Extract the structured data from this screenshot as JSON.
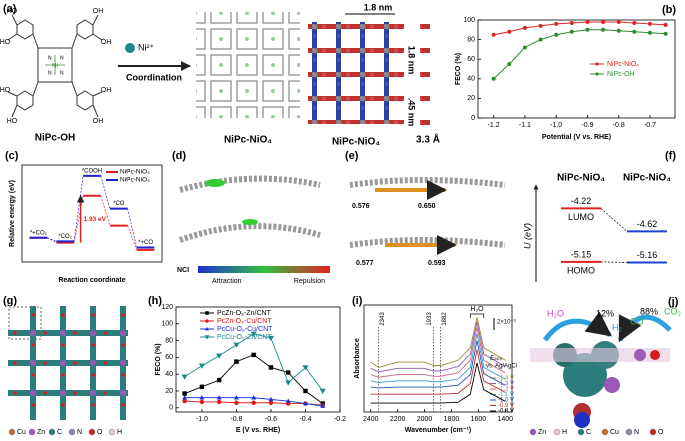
{
  "a": {
    "label": "(a)",
    "ligand": "NiPc-OH",
    "ion": "Ni²⁺",
    "reaction": "Coordination",
    "framework": "NiPc-NiO₄",
    "crystal": "NiPc-NiO₄",
    "pore_width": "1.8 nm",
    "pore_height": "1.8 nm",
    "ni_spacing": ".45 nm",
    "interlayer": "3.3 Å",
    "atoms": {
      "oh": "OH",
      "ho": "HO",
      "n": "N",
      "ni": "Ni"
    }
  },
  "b": {
    "label": "(b)",
    "chart": {
      "type": "line",
      "xlabel": "Potential (V vs. RHE)",
      "ylabel": "FECO (%)",
      "xlim": [
        -1.25,
        -0.62
      ],
      "xticks": [
        -1.2,
        -1.1,
        {
          "value": -1,
          "label": "-1.0"
        },
        -0.9,
        -0.8,
        -0.7
      ],
      "ylim": [
        0,
        100
      ],
      "yticks": [
        0,
        20,
        40,
        60,
        80,
        100
      ],
      "x": [
        -1.2,
        -1.15,
        -1.1,
        -1.05,
        -1,
        -0.95,
        -0.9,
        -0.85,
        -0.8,
        -0.75,
        -0.7,
        -0.65
      ],
      "series": [
        {
          "name": "NiPc-NiO₄",
          "color": "#d62728",
          "marker": "circle",
          "values": [
            85,
            88,
            92,
            94,
            96,
            97,
            98,
            98,
            98,
            97,
            96,
            95
          ]
        },
        {
          "name": "NiPc-OH",
          "color": "#2e8b2e",
          "marker": "circle",
          "values": [
            40,
            55,
            72,
            80,
            85,
            88,
            90,
            90,
            89,
            88,
            87,
            86
          ]
        }
      ]
    }
  },
  "c": {
    "label": "(c)",
    "chart": {
      "type": "energy",
      "xlabel": "Reaction coordinate",
      "ylabel": "Relative energy (eV)",
      "categories": [
        "*+CO₂",
        "*CO₂",
        "*COOH",
        "*CO",
        "*+CO"
      ],
      "ylim": [
        -1,
        3
      ],
      "annotation": "1.93 eV",
      "series": [
        {
          "name": "NiPc-NiO₄",
          "color": "#e02020",
          "values": [
            0,
            -0.2,
            1.73,
            0.5,
            -0.5
          ]
        },
        {
          "name": "NiPc-NiO₄",
          "color": "#2020d0",
          "values": [
            0,
            -0.15,
            2.55,
            1.2,
            -0.4
          ]
        }
      ]
    }
  },
  "d": {
    "label": "(d)",
    "scale_title": "NCI",
    "low": "Attraction",
    "high": "Repulsion"
  },
  "e": {
    "label": "(e)",
    "distances": [
      "0.576",
      "0.650",
      "0.577",
      "0.593"
    ]
  },
  "f": {
    "label": "(f)",
    "chart": {
      "type": "levels",
      "ylabel": "U (eV)",
      "ylim": [
        -5.5,
        -3.9
      ],
      "categories": [
        "LUMO",
        "HOMO"
      ],
      "series": [
        {
          "name": "NiPc-NiO₄",
          "color": "#e02020",
          "values": [
            -4.22,
            -5.15
          ]
        },
        {
          "name": "NiPc-NiO₄",
          "color": "#2040d0",
          "values": [
            -4.62,
            -5.16
          ]
        }
      ]
    }
  },
  "g": {
    "label": "(g)",
    "legend": [
      {
        "name": "Cu",
        "color": "#b87333"
      },
      {
        "name": "Zn",
        "color": "#9b59b6"
      },
      {
        "name": "C",
        "color": "#2a7d7b"
      },
      {
        "name": "N",
        "color": "#8a8aa8"
      },
      {
        "name": "O",
        "color": "#d02020"
      },
      {
        "name": "H",
        "color": "#e8c8c8"
      }
    ]
  },
  "h": {
    "label": "(h)",
    "chart": {
      "type": "line",
      "xlabel": "E (V vs. RHE)",
      "ylabel": "FECO (%)",
      "xlim": [
        -1.15,
        -0.2
      ],
      "xticks": [
        {
          "value": -1,
          "label": "-1.0"
        },
        -0.8,
        -0.6,
        -0.4,
        -0.2
      ],
      "ylim": [
        -5,
        120
      ],
      "yticks": [
        0,
        20,
        40,
        60,
        80,
        100,
        120
      ],
      "x": [
        -1.1,
        -1,
        -0.9,
        -0.8,
        -0.7,
        -0.6,
        -0.5,
        -0.4,
        -0.3
      ],
      "series": [
        {
          "name": "PcZn-O₈-Zn/CNT",
          "color": "#000000",
          "marker": "square",
          "values": [
            17,
            25,
            33,
            55,
            63,
            48,
            42,
            20,
            5
          ]
        },
        {
          "name": "PcZn-O₈-Cu/CNT",
          "color": "#e01818",
          "marker": "circle",
          "values": [
            8,
            7,
            7,
            6,
            6,
            6,
            5,
            5,
            3
          ]
        },
        {
          "name": "PcCu-O₈-Cu/CNT",
          "color": "#1a2ee0",
          "marker": "triangle-up",
          "values": [
            12,
            12,
            12,
            12,
            12,
            10,
            8,
            5,
            2
          ]
        },
        {
          "name": "PcCu-O₈-Zn/CNT",
          "color": "#1d8a8a",
          "marker": "triangle-down",
          "values": [
            37,
            50,
            62,
            75,
            88,
            83,
            30,
            48,
            20
          ]
        }
      ]
    }
  },
  "i": {
    "label": "(i)",
    "peak": "H₂O",
    "scale": "2×10⁻³",
    "potential_title": "Eₐₚₚ",
    "reference": "vs. Ag/AgCl",
    "chart": {
      "type": "line",
      "xlabel": "Wavenumber (cm⁻¹)",
      "ylabel": "Absorbance",
      "xlim": [
        2450,
        1350
      ],
      "xticks": [
        2400,
        2200,
        2000,
        1800,
        1600,
        1400
      ],
      "ylim": [
        0,
        12
      ],
      "refs": [
        2343,
        1933,
        1882
      ],
      "x": [
        2400,
        2343,
        2200,
        2000,
        1933,
        1882,
        1750,
        1660,
        1610,
        1560,
        1400
      ],
      "series": [
        {
          "name": "-1.4 V",
          "color": "#9b8a2e",
          "values": [
            5.6,
            5.0,
            5.6,
            5.6,
            5.2,
            5.2,
            5.8,
            7.2,
            10.6,
            7.2,
            5.8
          ]
        },
        {
          "name": "-1.3 V",
          "color": "#8a5ab0",
          "values": [
            4.9,
            4.5,
            4.9,
            4.9,
            4.6,
            4.6,
            5.1,
            6.5,
            10.1,
            6.5,
            5.1
          ]
        },
        {
          "name": "-1.2 V",
          "color": "#d06080",
          "values": [
            4.2,
            3.9,
            4.2,
            4.2,
            4.0,
            4.0,
            4.4,
            5.8,
            9.5,
            5.8,
            4.4
          ]
        },
        {
          "name": "-1.1 V",
          "color": "#3aa0c0",
          "values": [
            3.5,
            3.3,
            3.5,
            3.5,
            3.4,
            3.4,
            3.7,
            5.0,
            8.8,
            5.0,
            3.7
          ]
        },
        {
          "name": "-1.0 V",
          "color": "#2050c0",
          "values": [
            2.8,
            2.7,
            2.8,
            2.8,
            2.8,
            2.8,
            3.0,
            4.2,
            8.0,
            4.3,
            3.0
          ]
        },
        {
          "name": "-0.9 V",
          "color": "#c03030",
          "values": [
            2.0,
            2.0,
            2.0,
            2.0,
            2.0,
            2.0,
            2.1,
            3.2,
            7.0,
            3.5,
            2.2
          ]
        },
        {
          "name": "-0.8 V",
          "color": "#000000",
          "values": [
            1.0,
            1.0,
            1.0,
            1.0,
            1.0,
            1.0,
            1.1,
            2.0,
            5.5,
            2.5,
            1.2
          ]
        }
      ]
    }
  },
  "j": {
    "label": "(j)",
    "h2o": "H₂O",
    "h2_share": "12%",
    "h2": "H₂",
    "co": "CO",
    "co_share": "88%",
    "co2": "CO₂",
    "legend": [
      {
        "name": "Zn",
        "color": "#9b59b6"
      },
      {
        "name": "H",
        "color": "#e8c8c8"
      },
      {
        "name": "C",
        "color": "#2a7d7b"
      },
      {
        "name": "Cu",
        "color": "#b87333"
      },
      {
        "name": "N",
        "color": "#8a8aa8"
      },
      {
        "name": "O",
        "color": "#d02020"
      }
    ]
  }
}
